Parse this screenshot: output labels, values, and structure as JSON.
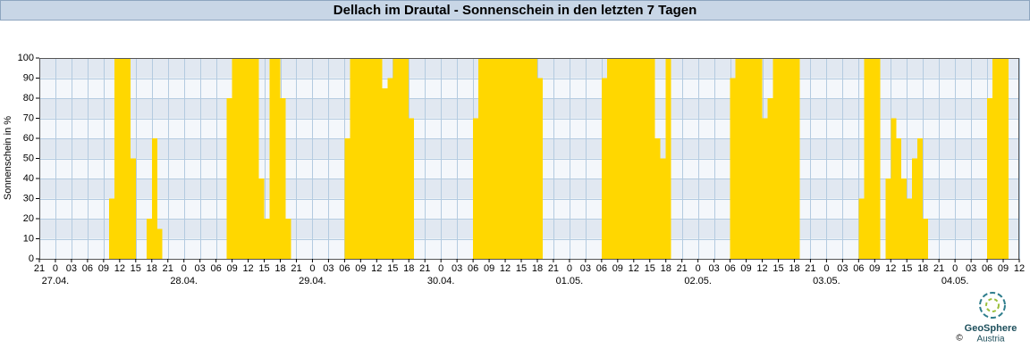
{
  "chart_data": {
    "type": "bar",
    "title": "Dellach im Drautal - Sonnenschein in den letzten 7 Tagen",
    "y_label": "Sonnenschein in %",
    "color": "#ffd700",
    "grid": true,
    "ylim": [
      0,
      100
    ],
    "yticks": [
      0,
      10,
      20,
      30,
      40,
      50,
      60,
      70,
      80,
      90,
      100
    ],
    "xlim": [
      0,
      183
    ],
    "values": [
      0,
      0,
      0,
      0,
      0,
      0,
      0,
      0,
      0,
      0,
      0,
      0,
      0,
      30,
      100,
      100,
      100,
      50,
      0,
      0,
      20,
      60,
      15,
      0,
      0,
      0,
      0,
      0,
      0,
      0,
      0,
      0,
      0,
      0,
      0,
      80,
      100,
      100,
      100,
      100,
      100,
      40,
      20,
      100,
      100,
      80,
      20,
      0,
      0,
      0,
      0,
      0,
      0,
      0,
      0,
      0,
      0,
      60,
      100,
      100,
      100,
      100,
      100,
      100,
      85,
      90,
      100,
      100,
      100,
      70,
      0,
      0,
      0,
      0,
      0,
      0,
      0,
      0,
      0,
      0,
      0,
      70,
      100,
      100,
      100,
      100,
      100,
      100,
      100,
      100,
      100,
      100,
      100,
      90,
      0,
      0,
      0,
      0,
      0,
      0,
      0,
      0,
      0,
      0,
      0,
      90,
      100,
      100,
      100,
      100,
      100,
      100,
      100,
      100,
      100,
      60,
      50,
      100,
      0,
      0,
      0,
      0,
      0,
      0,
      0,
      0,
      0,
      0,
      0,
      90,
      100,
      100,
      100,
      100,
      100,
      70,
      80,
      100,
      100,
      100,
      100,
      100,
      0,
      0,
      0,
      0,
      0,
      0,
      0,
      0,
      0,
      0,
      0,
      30,
      100,
      100,
      100,
      0,
      40,
      70,
      60,
      40,
      30,
      50,
      60,
      20,
      0,
      0,
      0,
      0,
      0,
      0,
      0,
      0,
      0,
      0,
      0,
      80,
      100,
      100,
      100,
      0,
      0
    ],
    "xticks": [
      {
        "value": 0,
        "label": "21"
      },
      {
        "value": 3,
        "label": "0"
      },
      {
        "value": 6,
        "label": "03"
      },
      {
        "value": 9,
        "label": "06"
      },
      {
        "value": 12,
        "label": "09"
      },
      {
        "value": 15,
        "label": "12"
      },
      {
        "value": 18,
        "label": "15"
      },
      {
        "value": 21,
        "label": "18"
      },
      {
        "value": 24,
        "label": "21"
      },
      {
        "value": 27,
        "label": "0"
      },
      {
        "value": 30,
        "label": "03"
      },
      {
        "value": 33,
        "label": "06"
      },
      {
        "value": 36,
        "label": "09"
      },
      {
        "value": 39,
        "label": "12"
      },
      {
        "value": 42,
        "label": "15"
      },
      {
        "value": 45,
        "label": "18"
      },
      {
        "value": 48,
        "label": "21"
      },
      {
        "value": 51,
        "label": "0"
      },
      {
        "value": 54,
        "label": "03"
      },
      {
        "value": 57,
        "label": "06"
      },
      {
        "value": 60,
        "label": "09"
      },
      {
        "value": 63,
        "label": "12"
      },
      {
        "value": 66,
        "label": "15"
      },
      {
        "value": 69,
        "label": "18"
      },
      {
        "value": 72,
        "label": "21"
      },
      {
        "value": 75,
        "label": "0"
      },
      {
        "value": 78,
        "label": "03"
      },
      {
        "value": 81,
        "label": "06"
      },
      {
        "value": 84,
        "label": "09"
      },
      {
        "value": 87,
        "label": "12"
      },
      {
        "value": 90,
        "label": "15"
      },
      {
        "value": 93,
        "label": "18"
      },
      {
        "value": 96,
        "label": "21"
      },
      {
        "value": 99,
        "label": "0"
      },
      {
        "value": 102,
        "label": "03"
      },
      {
        "value": 105,
        "label": "06"
      },
      {
        "value": 108,
        "label": "09"
      },
      {
        "value": 111,
        "label": "12"
      },
      {
        "value": 114,
        "label": "15"
      },
      {
        "value": 117,
        "label": "18"
      },
      {
        "value": 120,
        "label": "21"
      },
      {
        "value": 123,
        "label": "0"
      },
      {
        "value": 126,
        "label": "03"
      },
      {
        "value": 129,
        "label": "06"
      },
      {
        "value": 132,
        "label": "09"
      },
      {
        "value": 135,
        "label": "12"
      },
      {
        "value": 138,
        "label": "15"
      },
      {
        "value": 141,
        "label": "18"
      },
      {
        "value": 144,
        "label": "21"
      },
      {
        "value": 147,
        "label": "0"
      },
      {
        "value": 150,
        "label": "03"
      },
      {
        "value": 153,
        "label": "06"
      },
      {
        "value": 156,
        "label": "09"
      },
      {
        "value": 159,
        "label": "12"
      },
      {
        "value": 162,
        "label": "15"
      },
      {
        "value": 165,
        "label": "18"
      },
      {
        "value": 168,
        "label": "21"
      },
      {
        "value": 171,
        "label": "0"
      },
      {
        "value": 174,
        "label": "03"
      },
      {
        "value": 177,
        "label": "06"
      },
      {
        "value": 180,
        "label": "09"
      },
      {
        "value": 183,
        "label": "12"
      }
    ],
    "date_labels": [
      {
        "value": 3,
        "label": "27.04."
      },
      {
        "value": 27,
        "label": "28.04."
      },
      {
        "value": 51,
        "label": "29.04."
      },
      {
        "value": 75,
        "label": "30.04."
      },
      {
        "value": 99,
        "label": "01.05."
      },
      {
        "value": 123,
        "label": "02.05."
      },
      {
        "value": 147,
        "label": "03.05."
      },
      {
        "value": 171,
        "label": "04.05."
      }
    ],
    "logo": {
      "name": "GeoSphere",
      "sub": "Austria",
      "copyright": "©"
    }
  }
}
